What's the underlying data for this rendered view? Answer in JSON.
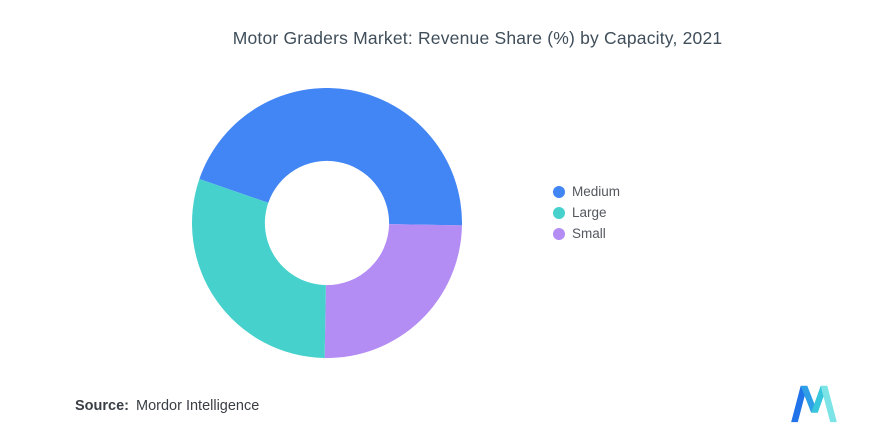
{
  "source": {
    "label": "Source:",
    "value": "Mordor Intelligence"
  },
  "chart_data": {
    "type": "pie",
    "subtype": "donut",
    "title": "Motor Graders Market: Revenue Share (%) by Capacity, 2021",
    "unit": "%",
    "series": [
      {
        "name": "Medium",
        "value": 45,
        "color": "#4285F4"
      },
      {
        "name": "Large",
        "value": 30,
        "color": "#47D1CD"
      },
      {
        "name": "Small",
        "value": 25,
        "color": "#B38CF4"
      }
    ],
    "draw_order": [
      "Medium",
      "Small",
      "Large"
    ],
    "start_angle_deg": 161,
    "inner_radius_ratio": 0.46,
    "legend_position": "right",
    "background": "#ffffff",
    "title_color": "#3f4e5a"
  }
}
